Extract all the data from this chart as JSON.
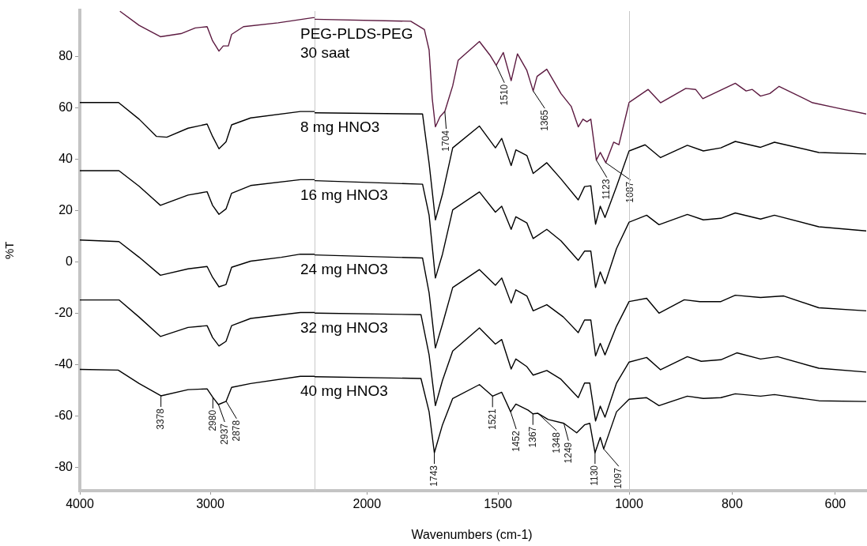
{
  "chart_data": [
    {
      "type": "line",
      "ylabel": "%T",
      "xlim": [
        4000,
        2200
      ],
      "xticks": [
        4000,
        3000
      ],
      "ylim": [
        -89,
        98
      ],
      "yticks": [
        -80,
        -60,
        -40,
        -20,
        0,
        20,
        40,
        60,
        80
      ],
      "grid": false,
      "legend": false,
      "marker": "none",
      "line_style": "solid",
      "series": [
        {
          "color": "#5c1a40",
          "x": [
            3690,
            3545,
            3382,
            3224,
            3115,
            3024,
            2982,
            2933,
            2900,
            2861,
            2836,
            2745,
            2479,
            2212,
            2200
          ],
          "values": [
            97.4,
            92,
            87.6,
            88.8,
            91,
            91.5,
            86,
            82,
            84,
            84,
            88.5,
            91.5,
            93,
            95,
            95
          ]
        },
        {
          "color": "#000000",
          "x": [
            4000,
            3703,
            3545,
            3412,
            3333,
            3170,
            3024,
            2982,
            2933,
            2879,
            2836,
            2690,
            2309,
            2200
          ],
          "values": [
            62,
            62,
            55.5,
            48.8,
            48.5,
            52,
            53.6,
            48.8,
            44,
            46.7,
            53.3,
            56,
            58.5,
            58.5
          ]
        },
        {
          "color": "#000000",
          "x": [
            4000,
            3700,
            3545,
            3382,
            3170,
            3024,
            2982,
            2933,
            2879,
            2836,
            2690,
            2309,
            2200
          ],
          "values": [
            35.5,
            35.5,
            29.4,
            22,
            26,
            27.3,
            22,
            18.5,
            20.6,
            26.7,
            29.7,
            32,
            32
          ]
        },
        {
          "color": "#000000",
          "x": [
            4000,
            3700,
            3545,
            3382,
            3170,
            3024,
            2982,
            2933,
            2879,
            2836,
            2690,
            2455,
            2309,
            2200
          ],
          "values": [
            8.5,
            7.9,
            1.8,
            -5.2,
            -2.7,
            -1.8,
            -6,
            -9.7,
            -8.8,
            -2.1,
            0.3,
            1.8,
            3,
            3
          ]
        },
        {
          "color": "#000000",
          "x": [
            4000,
            3700,
            3545,
            3382,
            3170,
            3024,
            2982,
            2933,
            2879,
            2836,
            2690,
            2309,
            2200
          ],
          "values": [
            -14.8,
            -14.8,
            -21.5,
            -29,
            -25.5,
            -24.8,
            -29.4,
            -32.7,
            -30.9,
            -24.8,
            -22,
            -19.7,
            -19.7
          ]
        },
        {
          "color": "#000000",
          "x": [
            4000,
            3706,
            3545,
            3378,
            3170,
            3024,
            2980,
            2937,
            2878,
            2836,
            2690,
            2309,
            2200
          ],
          "values": [
            -41.8,
            -42.1,
            -47.3,
            -52.1,
            -49.7,
            -49.4,
            -52.7,
            -55.5,
            -54.2,
            -48.8,
            -47.3,
            -44.5,
            -44.5
          ]
        }
      ],
      "annotations": [
        {
          "text": "3378",
          "x": 3378,
          "y": -52.1
        },
        {
          "text": "2980",
          "x": 2980,
          "y": -52.7
        },
        {
          "text": "2937",
          "x": 2937,
          "y": -55.5
        },
        {
          "text": "2878",
          "x": 2878,
          "y": -54.2
        }
      ]
    },
    {
      "type": "line",
      "xlabel": "Wavenumbers (cm-1)",
      "xlim": [
        2200,
        1000
      ],
      "xticks": [
        2000,
        1500
      ],
      "ylim": [
        -89,
        98
      ],
      "tick_labels": "x",
      "grid": false,
      "marker": "none",
      "line_style": "solid",
      "series": [
        {
          "name": "PEG-PLDS-PEG 30 saat",
          "color": "#5c1a40",
          "x": [
            2200,
            1833,
            1781,
            1763,
            1751,
            1739,
            1721,
            1703,
            1673,
            1652,
            1571,
            1531,
            1507,
            1480,
            1450,
            1426,
            1390,
            1366,
            1351,
            1314,
            1260,
            1221,
            1194,
            1176,
            1161,
            1146,
            1125,
            1110,
            1089,
            1059,
            1039,
            1000
          ],
          "values": [
            95,
            94.2,
            91,
            83,
            64,
            53,
            57,
            59,
            69,
            79,
            86.3,
            81,
            77,
            82,
            71,
            81.5,
            75,
            67,
            72.7,
            75.5,
            66,
            61,
            53,
            56,
            55,
            56,
            40,
            43,
            39,
            47,
            46,
            62.5
          ]
        },
        {
          "name": "8 mg HNO3",
          "color": "#000000",
          "x": [
            2200,
            1788,
            1763,
            1739,
            1712,
            1673,
            1571,
            1510,
            1486,
            1450,
            1432,
            1390,
            1366,
            1314,
            1260,
            1194,
            1170,
            1146,
            1128,
            1110,
            1092,
            1048,
            1000
          ],
          "values": [
            58.5,
            58,
            38.8,
            16.7,
            26.7,
            44.8,
            53.3,
            44.8,
            48.5,
            37.9,
            44,
            41.8,
            34.8,
            39,
            32.7,
            24.5,
            29.7,
            30,
            15,
            22,
            17.6,
            29.7,
            43.6
          ]
        },
        {
          "name": "16 mg HNO3",
          "color": "#000000",
          "x": [
            2200,
            1788,
            1763,
            1739,
            1712,
            1673,
            1571,
            1510,
            1486,
            1450,
            1432,
            1390,
            1366,
            1314,
            1260,
            1194,
            1170,
            1146,
            1128,
            1110,
            1092,
            1048,
            1000
          ],
          "values": [
            32,
            30.6,
            18.5,
            -6,
            3.3,
            20.6,
            27.6,
            19.7,
            22,
            13,
            17.9,
            15.5,
            9.4,
            13,
            8.5,
            0.9,
            4.5,
            4.5,
            -9.7,
            -3.6,
            -8.2,
            5.5,
            15.8
          ]
        },
        {
          "name": "24 mg HNO3",
          "color": "#000000",
          "x": [
            2200,
            1788,
            1763,
            1739,
            1712,
            1673,
            1571,
            1510,
            1486,
            1450,
            1432,
            1390,
            1366,
            1314,
            1251,
            1194,
            1170,
            1146,
            1128,
            1110,
            1092,
            1048,
            1000
          ],
          "values": [
            3,
            1.8,
            -11.8,
            -33.3,
            -24,
            -9.7,
            -2.7,
            -8.8,
            -6,
            -15.8,
            -10.6,
            -13,
            -18.8,
            -16.4,
            -21.2,
            -27.3,
            -22.4,
            -22.4,
            -36.4,
            -31.5,
            -36,
            -24.8,
            -15.2
          ]
        },
        {
          "name": "32 mg HNO3",
          "color": "#000000",
          "x": [
            2200,
            1794,
            1763,
            1739,
            1712,
            1673,
            1571,
            1510,
            1486,
            1450,
            1432,
            1390,
            1366,
            1314,
            1260,
            1194,
            1170,
            1150,
            1128,
            1110,
            1092,
            1048,
            1000
          ],
          "values": [
            -19.7,
            -20.3,
            -36,
            -55.8,
            -46,
            -34.5,
            -25.5,
            -31.8,
            -30,
            -41.5,
            -37.6,
            -40.6,
            -43.9,
            -42.1,
            -45.5,
            -52.7,
            -47,
            -47,
            -61.8,
            -56,
            -60.3,
            -47,
            -38.8
          ]
        },
        {
          "name": "40 mg HNO3",
          "color": "#000000",
          "x": [
            2200,
            1794,
            1763,
            1743,
            1712,
            1673,
            1571,
            1521,
            1486,
            1452,
            1432,
            1385,
            1367,
            1348,
            1309,
            1249,
            1200,
            1170,
            1150,
            1130,
            1110,
            1097,
            1048,
            1000
          ],
          "values": [
            -44.5,
            -45.2,
            -58.2,
            -74.2,
            -63.3,
            -53,
            -47.6,
            -52.1,
            -50.6,
            -58.2,
            -55.2,
            -57.6,
            -59,
            -58.8,
            -61.2,
            -62.7,
            -66.4,
            -63.3,
            -62.7,
            -74.2,
            -68.2,
            -72.7,
            -58.2,
            -53.3
          ]
        }
      ],
      "annotations": [
        {
          "text": "1704",
          "x": 1703,
          "y": 59
        },
        {
          "text": "1510",
          "x": 1507,
          "y": 77
        },
        {
          "text": "1365",
          "x": 1366,
          "y": 67
        },
        {
          "text": "1123",
          "x": 1125,
          "y": 40
        },
        {
          "text": "1087",
          "x": 1089,
          "y": 39
        },
        {
          "text": "1743",
          "x": 1743,
          "y": -74.2
        },
        {
          "text": "1521",
          "x": 1521,
          "y": -52.1
        },
        {
          "text": "1452",
          "x": 1452,
          "y": -58.2
        },
        {
          "text": "1367",
          "x": 1367,
          "y": -59
        },
        {
          "text": "1348",
          "x": 1348,
          "y": -58.8
        },
        {
          "text": "1249",
          "x": 1249,
          "y": -62.7
        },
        {
          "text": "1130",
          "x": 1130,
          "y": -74.2
        },
        {
          "text": "1097",
          "x": 1097,
          "y": -72.7
        }
      ]
    },
    {
      "type": "line",
      "xlim": [
        1000,
        540
      ],
      "xticks": [
        1000,
        800,
        600
      ],
      "ylim": [
        -89,
        98
      ],
      "tick_labels": "x",
      "grid": false,
      "legend": false,
      "marker": "none",
      "line_style": "solid",
      "series": [
        {
          "color": "#5c1a40",
          "x": [
            1000,
            963,
            939,
            890,
            871,
            857,
            794,
            773,
            761,
            745,
            727,
            709,
            644,
            595,
            540
          ],
          "values": [
            62.5,
            67.6,
            62.4,
            68,
            67.6,
            64,
            70,
            67,
            67.6,
            65,
            66,
            68.8,
            62.4,
            60.3,
            58
          ]
        },
        {
          "color": "#000000",
          "x": [
            1000,
            969,
            939,
            887,
            856,
            822,
            794,
            745,
            718,
            632,
            540
          ],
          "values": [
            43.6,
            46,
            41,
            45.8,
            43.6,
            44.8,
            47.3,
            45,
            47,
            43,
            42.4
          ]
        },
        {
          "color": "#000000",
          "x": [
            1000,
            966,
            942,
            887,
            856,
            822,
            794,
            745,
            718,
            632,
            540
          ],
          "values": [
            15.8,
            18.5,
            14.8,
            18.8,
            16.7,
            17.3,
            19.4,
            17,
            18.5,
            14,
            12.4
          ]
        },
        {
          "color": "#000000",
          "x": [
            1000,
            966,
            942,
            893,
            863,
            822,
            794,
            745,
            700,
            632,
            540
          ],
          "values": [
            -15.2,
            -13.9,
            -19.7,
            -14.5,
            -15.2,
            -15.2,
            -12.7,
            -13.6,
            -13,
            -17.6,
            -18.8
          ]
        },
        {
          "color": "#000000",
          "x": [
            1000,
            966,
            939,
            887,
            860,
            822,
            791,
            745,
            712,
            632,
            540
          ],
          "values": [
            -38.8,
            -37,
            -41.8,
            -36.7,
            -38.5,
            -37.9,
            -35.2,
            -37.6,
            -36.7,
            -41.2,
            -42.7
          ]
        },
        {
          "color": "#000000",
          "x": [
            1000,
            966,
            942,
            887,
            856,
            822,
            794,
            745,
            718,
            632,
            540
          ],
          "values": [
            -53.3,
            -52.7,
            -55.8,
            -52.1,
            -53,
            -52.7,
            -51.2,
            -52.1,
            -51.5,
            -53.9,
            -54.2
          ]
        }
      ]
    }
  ]
}
